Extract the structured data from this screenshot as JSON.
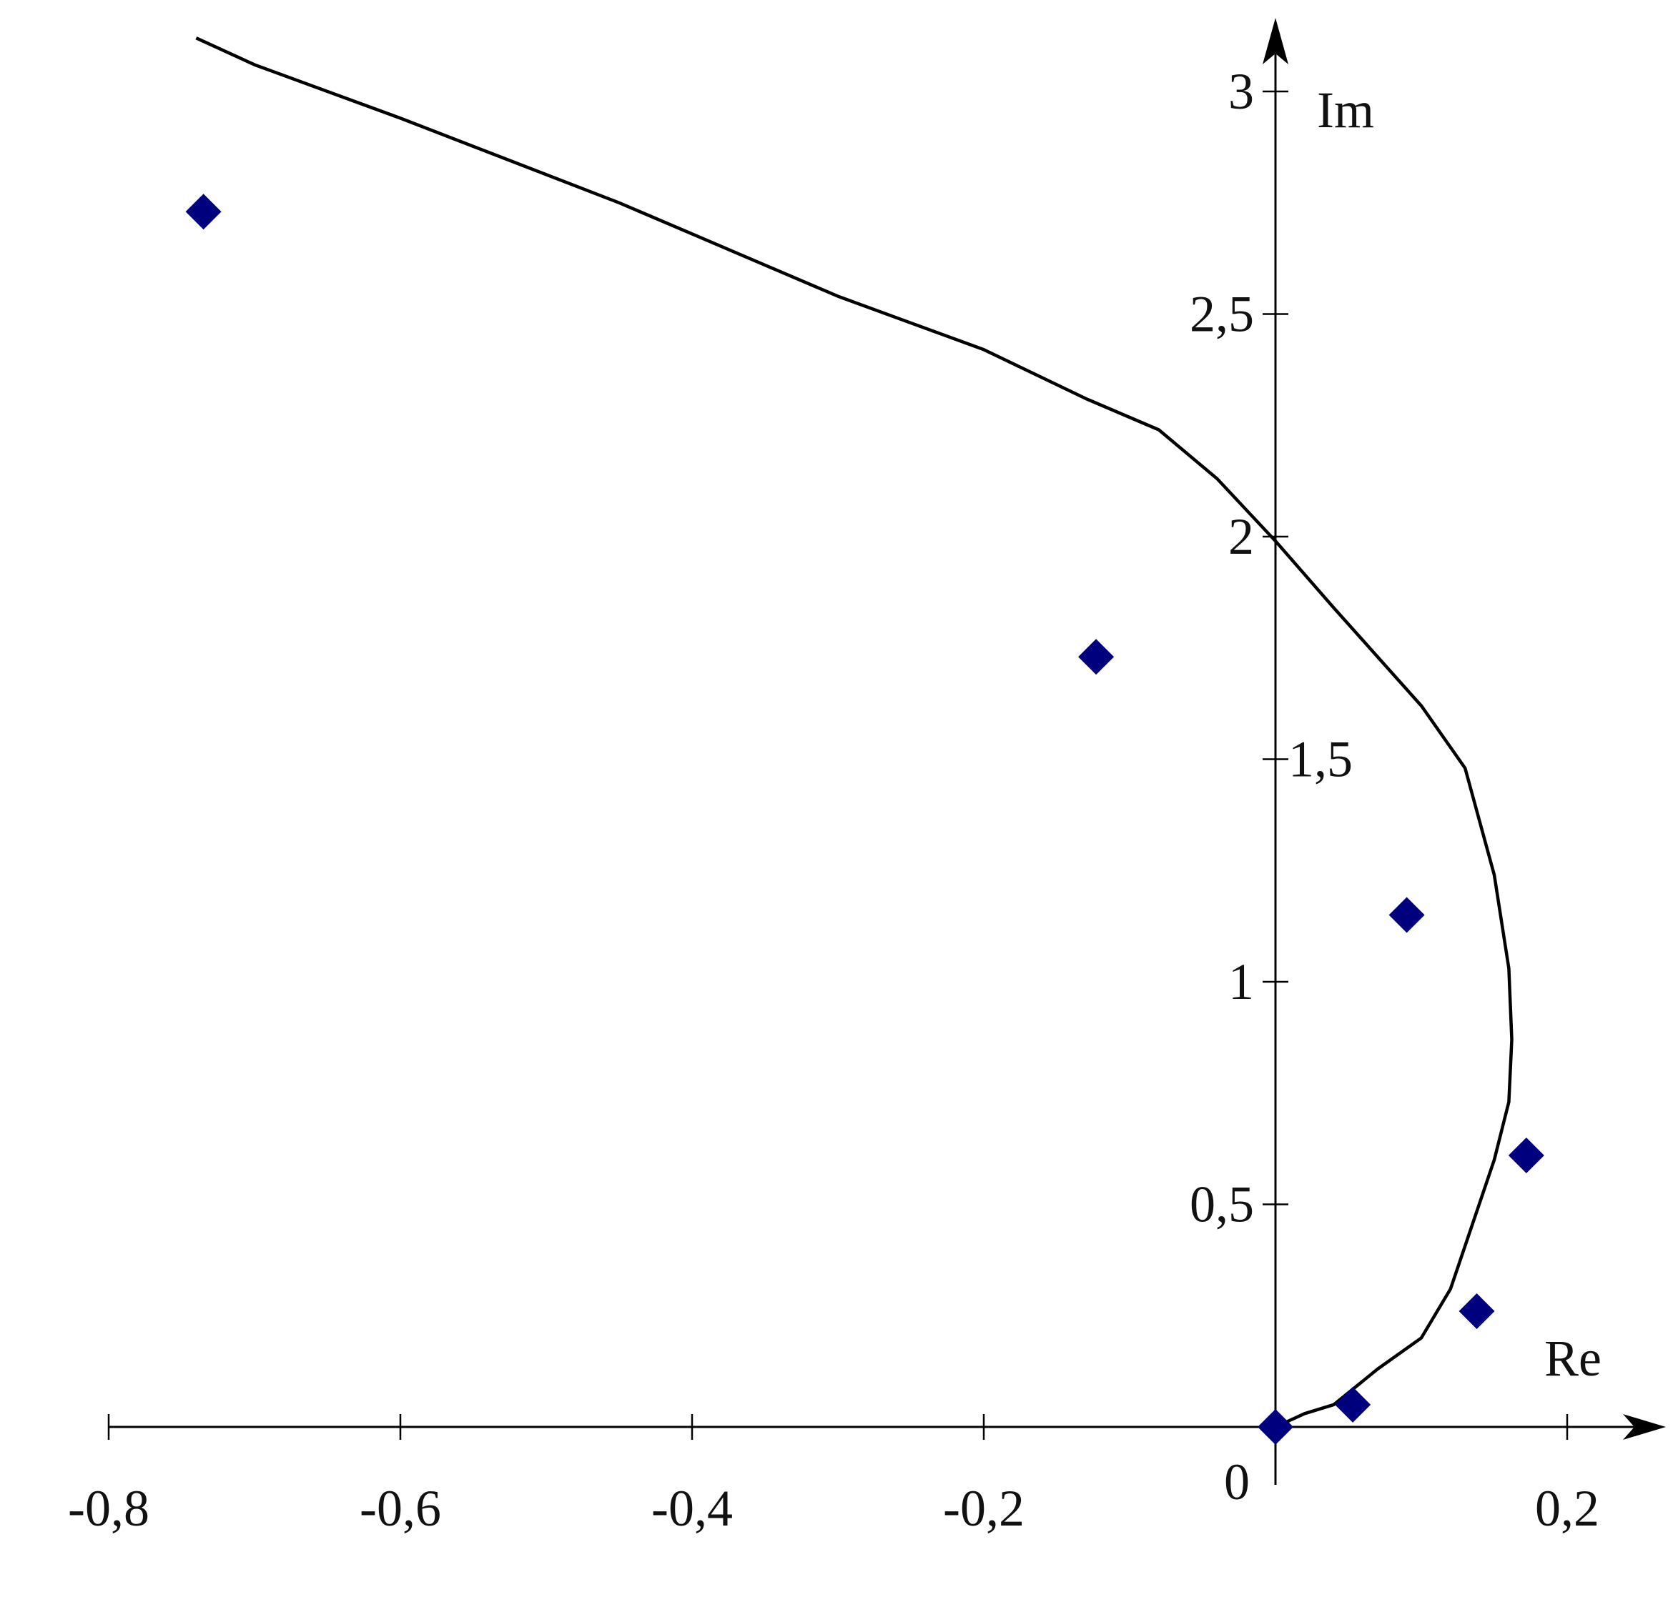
{
  "chart_data": {
    "type": "line",
    "xlabel": "Re",
    "ylabel": "Im",
    "xlim": [
      -0.8,
      0.2
    ],
    "ylim": [
      0,
      3
    ],
    "origin_label": "0",
    "x_ticks": [
      {
        "value": -0.8,
        "label": "-0,8"
      },
      {
        "value": -0.6,
        "label": "-0,6"
      },
      {
        "value": -0.4,
        "label": "-0,4"
      },
      {
        "value": -0.2,
        "label": "-0,2"
      },
      {
        "value": 0.2,
        "label": "0,2"
      }
    ],
    "y_ticks": [
      {
        "value": 0.5,
        "label": "0,5"
      },
      {
        "value": 1,
        "label": "1"
      },
      {
        "value": 1.5,
        "label": "1,5"
      },
      {
        "value": 2,
        "label": "2"
      },
      {
        "value": 2.5,
        "label": "2,5"
      },
      {
        "value": 3,
        "label": "3"
      }
    ],
    "curve": {
      "x": [
        0,
        0.02,
        0.04,
        0.07,
        0.1,
        0.12,
        0.15,
        0.16,
        0.162,
        0.16,
        0.15,
        0.13,
        0.1,
        0.07,
        0.04,
        0.0,
        -0.04,
        -0.08,
        -0.13,
        -0.2,
        -0.3,
        -0.45,
        -0.6,
        -0.7,
        -0.74
      ],
      "y": [
        0,
        0.03,
        0.05,
        0.13,
        0.2,
        0.31,
        0.6,
        0.73,
        0.87,
        1.03,
        1.24,
        1.48,
        1.62,
        1.73,
        1.84,
        1.99,
        2.13,
        2.24,
        2.31,
        2.42,
        2.54,
        2.75,
        2.94,
        3.06,
        3.12
      ]
    },
    "points": {
      "x": [
        0,
        0.053,
        0.138,
        0.172,
        0.09,
        -0.123,
        -0.735
      ],
      "y": [
        0,
        0.05,
        0.26,
        0.61,
        1.15,
        1.73,
        2.73
      ]
    },
    "colors": {
      "line": "#000000",
      "marker": "#00007f",
      "axis": "#000000",
      "text": "#111111"
    },
    "grid": false,
    "arrowheads": "both axes"
  }
}
